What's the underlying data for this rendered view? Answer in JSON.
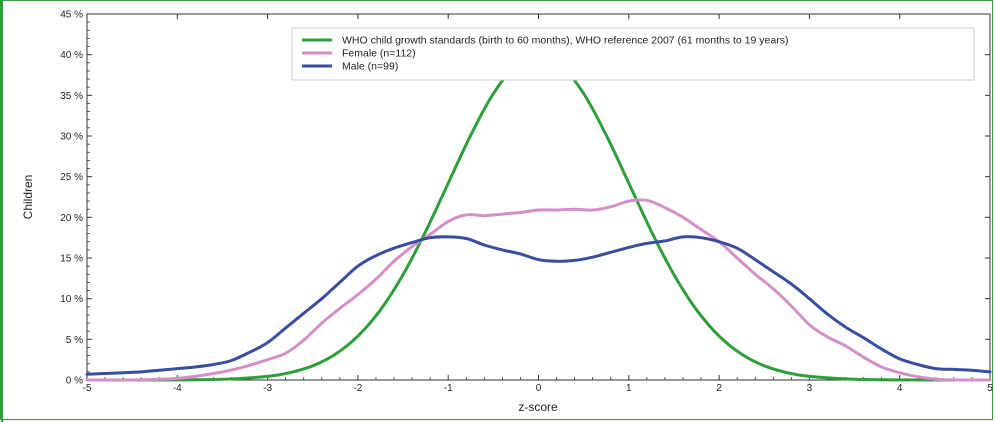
{
  "chart_data": {
    "type": "line",
    "xlabel": "z-score",
    "ylabel": "Children",
    "xlim": [
      -5,
      5
    ],
    "ylim": [
      0,
      45
    ],
    "xticks": [
      -5,
      -4,
      -3,
      -2,
      -1,
      0,
      1,
      2,
      3,
      4,
      5
    ],
    "yticks": [
      0,
      5,
      10,
      15,
      20,
      25,
      30,
      35,
      40,
      45
    ],
    "ytick_labels": [
      "0 %",
      "5 %",
      "10 %",
      "15 %",
      "20 %",
      "25 %",
      "30 %",
      "35 %",
      "40 %",
      "45 %"
    ],
    "legend_position": "top-right",
    "series": [
      {
        "name": "WHO child growth standards (birth to 60 months), WHO reference 2007 (61 months to 19 years)",
        "color": "#2e9e3a",
        "x": [
          -5,
          -4.5,
          -4,
          -3.5,
          -3,
          -2.75,
          -2.5,
          -2.25,
          -2,
          -1.75,
          -1.5,
          -1.25,
          -1,
          -0.75,
          -0.5,
          -0.25,
          0,
          0.25,
          0.5,
          0.75,
          1,
          1.25,
          1.5,
          1.75,
          2,
          2.25,
          2.5,
          2.75,
          3,
          3.5,
          4,
          4.5,
          5
        ],
        "y": [
          0,
          0,
          0.01,
          0.09,
          0.44,
          0.91,
          1.75,
          3.17,
          5.4,
          8.63,
          12.95,
          18.26,
          24.2,
          30.11,
          35.21,
          38.67,
          39.89,
          38.67,
          35.21,
          30.11,
          24.2,
          18.26,
          12.95,
          8.63,
          5.4,
          3.17,
          1.75,
          0.91,
          0.44,
          0.09,
          0.01,
          0,
          0
        ]
      },
      {
        "name": "Female (n=112)",
        "color": "#d48fc8",
        "x": [
          -5,
          -4.5,
          -4,
          -3.6,
          -3.3,
          -3,
          -2.8,
          -2.6,
          -2.4,
          -2.2,
          -2,
          -1.8,
          -1.6,
          -1.4,
          -1.2,
          -1,
          -0.8,
          -0.6,
          -0.4,
          -0.2,
          0,
          0.2,
          0.4,
          0.6,
          0.8,
          1,
          1.2,
          1.4,
          1.6,
          1.8,
          2,
          2.2,
          2.4,
          2.6,
          2.8,
          3,
          3.2,
          3.4,
          3.6,
          3.8,
          4,
          4.2,
          4.4,
          4.6,
          5
        ],
        "y": [
          0,
          0,
          0.2,
          0.8,
          1.5,
          2.5,
          3.3,
          4.9,
          7,
          8.8,
          10.5,
          12.4,
          14.6,
          16.4,
          17.9,
          19.5,
          20.3,
          20.2,
          20.4,
          20.6,
          20.9,
          20.9,
          21,
          20.9,
          21.3,
          22,
          22.1,
          21.2,
          20,
          18.5,
          17,
          15,
          13,
          11.2,
          9.1,
          6.8,
          5.3,
          4.2,
          2.8,
          1.6,
          0.9,
          0.4,
          0.1,
          0,
          0
        ]
      },
      {
        "name": "Male (n=99)",
        "color": "#3a4ea0",
        "x": [
          -5,
          -4.8,
          -4.6,
          -4.4,
          -4.2,
          -4,
          -3.8,
          -3.6,
          -3.4,
          -3.2,
          -3,
          -2.8,
          -2.6,
          -2.4,
          -2.2,
          -2,
          -1.8,
          -1.6,
          -1.4,
          -1.2,
          -1,
          -0.8,
          -0.6,
          -0.4,
          -0.2,
          0,
          0.2,
          0.4,
          0.6,
          0.8,
          1,
          1.2,
          1.4,
          1.6,
          1.8,
          2,
          2.2,
          2.4,
          2.6,
          2.8,
          3,
          3.2,
          3.4,
          3.6,
          3.8,
          4,
          4.2,
          4.4,
          4.6,
          4.8,
          5
        ],
        "y": [
          0.7,
          0.8,
          0.9,
          1,
          1.2,
          1.4,
          1.6,
          1.9,
          2.4,
          3.4,
          4.6,
          6.4,
          8.2,
          10,
          12,
          14,
          15.3,
          16.2,
          16.9,
          17.5,
          17.6,
          17.4,
          16.6,
          16,
          15.5,
          14.8,
          14.6,
          14.7,
          15.1,
          15.7,
          16.3,
          16.8,
          17.1,
          17.6,
          17.5,
          17,
          16.2,
          14.8,
          13.3,
          11.8,
          10,
          8.1,
          6.5,
          5.2,
          3.8,
          2.6,
          1.9,
          1.4,
          1.3,
          1.2,
          1
        ]
      }
    ]
  }
}
